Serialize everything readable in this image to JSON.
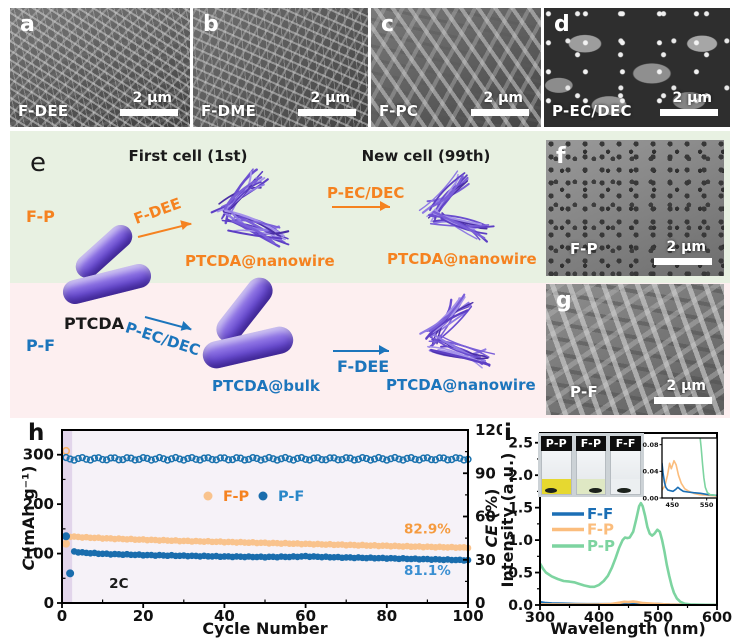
{
  "figure": {
    "sem": {
      "a": {
        "letter": "a",
        "sample": "F-DEE",
        "scale": "2 μm"
      },
      "b": {
        "letter": "b",
        "sample": "F-DME",
        "scale": "2 μm"
      },
      "c": {
        "letter": "c",
        "sample": "F-PC",
        "scale": "2 μm"
      },
      "d": {
        "letter": "d",
        "sample": "P-EC/DEC",
        "scale": "2 μm"
      },
      "f": {
        "letter": "f",
        "sample": "F-P",
        "scale": "2 μm"
      },
      "g": {
        "letter": "g",
        "sample": "P-F",
        "scale": "2 μm"
      }
    }
  },
  "schematic": {
    "letter": "e",
    "first_cell_title": "First cell (1st)",
    "new_cell_title": "New cell (99th)",
    "top_row_label": "F-P",
    "bottom_row_label": "P-F",
    "ptcda_label": "PTCDA",
    "top_arrow1_label": "F-DEE",
    "top_arrow2_label": "P-EC/DEC",
    "bottom_arrow1_label": "P-EC/DEC",
    "bottom_arrow2_label": "F-DEE",
    "top_product1_label": "PTCDA@nanowire",
    "top_product2_label": "PTCDA@nanowire",
    "bottom_product1_label": "PTCDA@bulk",
    "bottom_product2_label": "PTCDA@nanowire",
    "colors": {
      "orange": "#f58220",
      "blue": "#1c75bc",
      "green_bg": "#e8f1e2",
      "pink_bg": "#fdeff0",
      "rod_purple": "#7a5fd8"
    }
  },
  "chart_data": [
    {
      "id": "cycling",
      "type": "scatter",
      "panel_letter": "h",
      "xlabel": "Cycle Number",
      "ylabel_left_italic": "C",
      "ylabel_left_rest": " (mAh g⁻¹)",
      "ylabel_right_italic": "CE",
      "ylabel_right_rest": " (%)",
      "xlim": [
        0,
        100
      ],
      "xticks": [
        0,
        20,
        40,
        60,
        80,
        100
      ],
      "ylim_left": [
        0,
        350
      ],
      "yticks_left": [
        0,
        100,
        200,
        300
      ],
      "ylim_right": [
        0,
        120
      ],
      "yticks_right": [
        0,
        30,
        60,
        90,
        120
      ],
      "plot_bg": "#f6f2f8",
      "highlight_band": {
        "x0": 0,
        "x1": 2.5,
        "color": "#e2d5eb"
      },
      "legend": [
        {
          "label": "F-P",
          "marker_color": "#f9c38d",
          "text_color": "#f58220"
        },
        {
          "label": "P-F",
          "marker_color": "#1a6dad",
          "text_color": "#2a87c8"
        }
      ],
      "annotations": [
        {
          "text": "82.9%",
          "x": 90,
          "y_left": 141,
          "color": "#f59b3f"
        },
        {
          "text": "81.1%",
          "x": 90,
          "y_left": 57,
          "color": "#3a8fd2"
        },
        {
          "text": "2C",
          "x": 14,
          "y_left": 30,
          "color": "#1a1a1a"
        }
      ],
      "series": [
        {
          "name": "F-P capacity",
          "role": "capacity",
          "axis": "left",
          "marker": "filled",
          "color": "#f9c38d",
          "anchors": [
            [
              1,
              135
            ],
            [
              3,
              134
            ],
            [
              5,
              133
            ],
            [
              10,
              131
            ],
            [
              20,
              128
            ],
            [
              30,
              125.5
            ],
            [
              40,
              123.5
            ],
            [
              50,
              121.5
            ],
            [
              60,
              119.5
            ],
            [
              70,
              117.5
            ],
            [
              80,
              115.5
            ],
            [
              90,
              113.5
            ],
            [
              100,
              112
            ]
          ],
          "extra_points": [
            [
              1,
              120
            ]
          ]
        },
        {
          "name": "P-F capacity",
          "role": "capacity",
          "axis": "left",
          "marker": "filled",
          "color": "#1a6dad",
          "anchors": [
            [
              3,
              104
            ],
            [
              5,
              102
            ],
            [
              10,
              99.5
            ],
            [
              20,
              97
            ],
            [
              30,
              95.5
            ],
            [
              40,
              94
            ],
            [
              50,
              93
            ],
            [
              57,
              93.5
            ],
            [
              60,
              94.5
            ],
            [
              63,
              93.5
            ],
            [
              70,
              92
            ],
            [
              80,
              90.5
            ],
            [
              90,
              88.5
            ],
            [
              100,
              86.5
            ]
          ],
          "extra_points": [
            [
              1,
              135
            ],
            [
              2,
              60
            ]
          ]
        },
        {
          "name": "Coulombic efficiency",
          "role": "ce",
          "axis": "right",
          "marker": "open",
          "color": "#1a72ae",
          "value": 100
        },
        {
          "name": "F-P first-cycle CE",
          "role": "point",
          "axis": "right",
          "marker": "open",
          "color": "#f9b36a",
          "points": [
            [
              1,
              105.5
            ]
          ]
        }
      ]
    },
    {
      "id": "pl-spectra",
      "type": "line",
      "panel_letter": "i",
      "xlabel": "Wavelength (nm)",
      "ylabel": "Intensity (a.u.)",
      "xlim": [
        300,
        600
      ],
      "xticks": [
        300,
        400,
        500,
        600
      ],
      "ylim": [
        0,
        2.65
      ],
      "ytick_labels": [
        "0.0",
        "0.5",
        "1.0",
        "1.5",
        "2.0",
        "2.5"
      ],
      "yticks": [
        0,
        0.5,
        1.0,
        1.5,
        2.0,
        2.5
      ],
      "legend": [
        {
          "label": "F-F",
          "color": "#1b6fb5"
        },
        {
          "label": "F-P",
          "color": "#fbbd7d"
        },
        {
          "label": "P-P",
          "color": "#7dd4a0"
        }
      ],
      "series": [
        {
          "name": "F-F",
          "color": "#1b6fb5",
          "points": [
            [
              300,
              0.045
            ],
            [
              310,
              0.03
            ],
            [
              320,
              0.025
            ],
            [
              340,
              0.02
            ],
            [
              360,
              0.015
            ],
            [
              380,
              0.012
            ],
            [
              400,
              0.012
            ],
            [
              420,
              0.012
            ],
            [
              440,
              0.015
            ],
            [
              455,
              0.02
            ],
            [
              465,
              0.022
            ],
            [
              480,
              0.018
            ],
            [
              500,
              0.015
            ],
            [
              520,
              0.008
            ],
            [
              540,
              0.004
            ],
            [
              560,
              0.002
            ],
            [
              600,
              0.0
            ]
          ]
        },
        {
          "name": "F-P",
          "color": "#fbbd7d",
          "points": [
            [
              300,
              0.01
            ],
            [
              350,
              0.008
            ],
            [
              400,
              0.01
            ],
            [
              420,
              0.015
            ],
            [
              435,
              0.035
            ],
            [
              443,
              0.05
            ],
            [
              450,
              0.045
            ],
            [
              458,
              0.052
            ],
            [
              465,
              0.045
            ],
            [
              475,
              0.03
            ],
            [
              490,
              0.02
            ],
            [
              505,
              0.012
            ],
            [
              520,
              0.006
            ],
            [
              540,
              0.003
            ],
            [
              570,
              0.001
            ],
            [
              600,
              0.0
            ]
          ]
        },
        {
          "name": "P-P",
          "color": "#7dd4a0",
          "points": [
            [
              300,
              0.64
            ],
            [
              305,
              0.56
            ],
            [
              310,
              0.5
            ],
            [
              315,
              0.47
            ],
            [
              320,
              0.44
            ],
            [
              330,
              0.4
            ],
            [
              340,
              0.37
            ],
            [
              350,
              0.36
            ],
            [
              358,
              0.35
            ],
            [
              365,
              0.33
            ],
            [
              375,
              0.3
            ],
            [
              385,
              0.28
            ],
            [
              392,
              0.28
            ],
            [
              400,
              0.31
            ],
            [
              408,
              0.37
            ],
            [
              415,
              0.45
            ],
            [
              422,
              0.58
            ],
            [
              428,
              0.72
            ],
            [
              434,
              0.88
            ],
            [
              440,
              1.0
            ],
            [
              444,
              1.04
            ],
            [
              448,
              1.03
            ],
            [
              452,
              1.04
            ],
            [
              458,
              1.13
            ],
            [
              463,
              1.32
            ],
            [
              468,
              1.52
            ],
            [
              471,
              1.57
            ],
            [
              474,
              1.52
            ],
            [
              478,
              1.38
            ],
            [
              482,
              1.2
            ],
            [
              486,
              1.1
            ],
            [
              490,
              1.07
            ],
            [
              494,
              1.1
            ],
            [
              499,
              1.16
            ],
            [
              503,
              1.13
            ],
            [
              507,
              1.0
            ],
            [
              511,
              0.82
            ],
            [
              515,
              0.62
            ],
            [
              519,
              0.45
            ],
            [
              523,
              0.3
            ],
            [
              527,
              0.19
            ],
            [
              532,
              0.1
            ],
            [
              538,
              0.05
            ],
            [
              545,
              0.02
            ],
            [
              555,
              0.01
            ],
            [
              570,
              0.005
            ],
            [
              600,
              0.0
            ]
          ]
        }
      ],
      "inset_chart": {
        "xlim": [
          420,
          580
        ],
        "xticks": [
          450,
          550
        ],
        "ylim": [
          0,
          0.09
        ],
        "yticks": [
          0,
          0.04,
          0.08
        ],
        "ytick_labels": [
          "0.00",
          "0.04",
          "0.08"
        ],
        "series": [
          {
            "name": "F-P",
            "color": "#fbbd7d",
            "points": [
              [
                420,
                0.012
              ],
              [
                428,
                0.018
              ],
              [
                436,
                0.034
              ],
              [
                442,
                0.052
              ],
              [
                447,
                0.044
              ],
              [
                455,
                0.056
              ],
              [
                461,
                0.05
              ],
              [
                468,
                0.034
              ],
              [
                476,
                0.022
              ],
              [
                486,
                0.014
              ],
              [
                498,
                0.01
              ],
              [
                512,
                0.007
              ],
              [
                530,
                0.005
              ],
              [
                555,
                0.004
              ],
              [
                578,
                0.003
              ]
            ]
          },
          {
            "name": "F-F",
            "color": "#1b6fb5",
            "points": [
              [
                420,
                0.052
              ],
              [
                423,
                0.038
              ],
              [
                427,
                0.024
              ],
              [
                431,
                0.016
              ],
              [
                437,
                0.012
              ],
              [
                444,
                0.011
              ],
              [
                452,
                0.01
              ],
              [
                460,
                0.013
              ],
              [
                466,
                0.016
              ],
              [
                473,
                0.013
              ],
              [
                482,
                0.01
              ],
              [
                495,
                0.009
              ],
              [
                512,
                0.008
              ],
              [
                532,
                0.007
              ],
              [
                555,
                0.005
              ],
              [
                578,
                0.004
              ]
            ]
          },
          {
            "name": "P-P",
            "color": "#7dd4a0",
            "points": [
              [
                524,
                0.12
              ],
              [
                530,
                0.095
              ],
              [
                534,
                0.075
              ],
              [
                538,
                0.05
              ],
              [
                542,
                0.03
              ],
              [
                546,
                0.016
              ],
              [
                552,
                0.008
              ],
              [
                560,
                0.005
              ],
              [
                575,
                0.004
              ]
            ]
          }
        ]
      },
      "photo_inset": {
        "vials": [
          {
            "label": "P-P",
            "liquid_color": "#e6d830"
          },
          {
            "label": "F-P",
            "liquid_color": "#dfe8c4"
          },
          {
            "label": "F-F",
            "liquid_color": "#eceff1"
          }
        ]
      }
    }
  ]
}
